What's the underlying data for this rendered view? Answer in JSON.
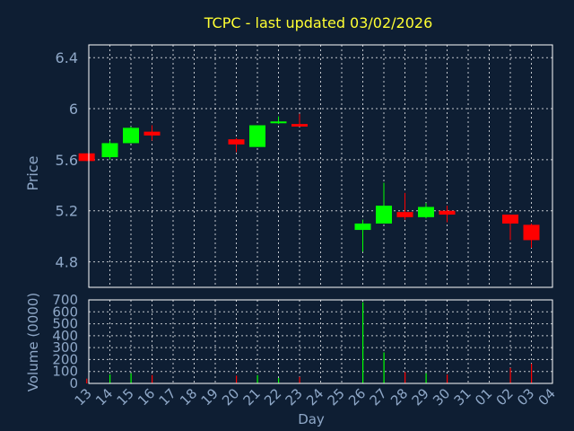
{
  "title": "TCPC - last updated 03/02/2026",
  "colors": {
    "background": "#0e1e33",
    "title": "#ffff33",
    "axis_text": "#8fa8c8",
    "frame": "#ffffff",
    "grid": "#ffffff",
    "up": "#00ff00",
    "down": "#ff0000"
  },
  "chart_data": [
    {
      "type": "candlestick",
      "ylabel": "Price",
      "ylim": [
        4.6,
        6.5
      ],
      "yticks": [
        4.8,
        5.2,
        5.6,
        6,
        6.4
      ],
      "grid": true,
      "x": [
        "13",
        "14",
        "15",
        "16",
        "17",
        "18",
        "19",
        "20",
        "21",
        "22",
        "23",
        "24",
        "25",
        "26",
        "27",
        "28",
        "29",
        "30",
        "31",
        "01",
        "02",
        "03",
        "04"
      ],
      "candles": [
        {
          "x": 12.9,
          "open": 5.65,
          "high": 5.65,
          "low": 5.59,
          "close": 5.59
        },
        {
          "x": 14.0,
          "open": 5.62,
          "high": 5.75,
          "low": 5.6,
          "close": 5.73
        },
        {
          "x": 15.0,
          "open": 5.73,
          "high": 5.86,
          "low": 5.73,
          "close": 5.85
        },
        {
          "x": 16.0,
          "open": 5.82,
          "high": 5.87,
          "low": 5.75,
          "close": 5.79
        },
        {
          "x": 20.0,
          "open": 5.76,
          "high": 5.77,
          "low": 5.66,
          "close": 5.72
        },
        {
          "x": 21.0,
          "open": 5.7,
          "high": 5.87,
          "low": 5.7,
          "close": 5.87
        },
        {
          "x": 22.0,
          "open": 5.89,
          "high": 5.94,
          "low": 5.88,
          "close": 5.9
        },
        {
          "x": 23.0,
          "open": 5.88,
          "high": 5.96,
          "low": 5.86,
          "close": 5.86
        },
        {
          "x": 26.0,
          "open": 5.05,
          "high": 5.13,
          "low": 4.88,
          "close": 5.1
        },
        {
          "x": 27.0,
          "open": 5.1,
          "high": 5.42,
          "low": 5.1,
          "close": 5.24
        },
        {
          "x": 28.0,
          "open": 5.19,
          "high": 5.34,
          "low": 5.13,
          "close": 5.15
        },
        {
          "x": 29.0,
          "open": 5.15,
          "high": 5.26,
          "low": 5.14,
          "close": 5.23
        },
        {
          "x": 30.0,
          "open": 5.2,
          "high": 5.24,
          "low": 5.11,
          "close": 5.17
        },
        {
          "x": 33.0,
          "open": 5.17,
          "high": 5.17,
          "low": 4.97,
          "close": 5.1
        },
        {
          "x": 34.0,
          "open": 5.09,
          "high": 5.1,
          "low": 4.91,
          "close": 4.97
        }
      ]
    },
    {
      "type": "bar",
      "xlabel": "Day",
      "ylabel": "Volume (0000)",
      "ylim": [
        0,
        700
      ],
      "yticks": [
        0,
        100,
        200,
        300,
        400,
        500,
        600,
        700
      ],
      "grid": true,
      "x": [
        "13",
        "14",
        "15",
        "16",
        "17",
        "18",
        "19",
        "20",
        "21",
        "22",
        "23",
        "24",
        "25",
        "26",
        "27",
        "28",
        "29",
        "30",
        "31",
        "01",
        "02",
        "03",
        "04"
      ],
      "bars": [
        {
          "x": 12.9,
          "value": 40,
          "color": "down"
        },
        {
          "x": 14.0,
          "value": 75,
          "color": "up"
        },
        {
          "x": 15.0,
          "value": 85,
          "color": "up"
        },
        {
          "x": 16.0,
          "value": 70,
          "color": "down"
        },
        {
          "x": 20.0,
          "value": 65,
          "color": "down"
        },
        {
          "x": 21.0,
          "value": 70,
          "color": "up"
        },
        {
          "x": 22.0,
          "value": 45,
          "color": "up"
        },
        {
          "x": 23.0,
          "value": 55,
          "color": "down"
        },
        {
          "x": 26.0,
          "value": 680,
          "color": "up"
        },
        {
          "x": 27.0,
          "value": 260,
          "color": "up"
        },
        {
          "x": 28.0,
          "value": 95,
          "color": "down"
        },
        {
          "x": 29.0,
          "value": 85,
          "color": "up"
        },
        {
          "x": 30.0,
          "value": 75,
          "color": "down"
        },
        {
          "x": 33.0,
          "value": 130,
          "color": "down"
        },
        {
          "x": 34.0,
          "value": 165,
          "color": "down"
        }
      ]
    }
  ]
}
